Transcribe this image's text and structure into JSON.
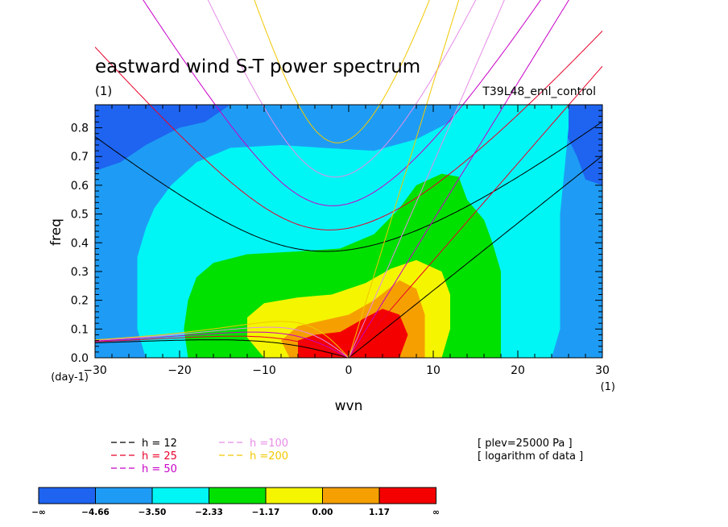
{
  "chart_data": {
    "type": "heatmap",
    "title": "eastward wind S-T power spectrum",
    "subtitle_left": "(1)",
    "subtitle_right": "T39L48_eml_control",
    "xlabel": "wvn",
    "ylabel": "freq",
    "x_unit": "(1)",
    "y_unit": "(day-1)",
    "xlim": [
      -30,
      30
    ],
    "ylim": [
      0,
      0.88
    ],
    "x_ticks": [
      "−30",
      "−20",
      "−10",
      "0",
      "10",
      "20",
      "30"
    ],
    "y_ticks": [
      "0.0",
      "0.1",
      "0.2",
      "0.3",
      "0.4",
      "0.5",
      "0.6",
      "0.7",
      "0.8"
    ],
    "grid": false,
    "levels": [
      -4.66,
      -3.5,
      -2.33,
      -1.17,
      0.0,
      1.17
    ],
    "colorbar_labels": [
      "−∞",
      "−4.66",
      "−3.50",
      "−2.33",
      "−1.17",
      "0.00",
      "1.17",
      "∞"
    ],
    "colorbar_colors": [
      "#1e64f0",
      "#1e9cf5",
      "#00f5f5",
      "#00e100",
      "#f5f500",
      "#f5a000",
      "#f50000"
    ],
    "contours": [
      {
        "level": -4.66,
        "points": [
          [
            -30,
            0.86
          ],
          [
            -30,
            0.65
          ],
          [
            -27,
            0.68
          ],
          [
            -24,
            0.74
          ],
          [
            -20,
            0.8
          ],
          [
            -17,
            0.82
          ],
          [
            -14,
            0.88
          ]
        ]
      },
      {
        "level": -4.66,
        "points": [
          [
            21,
            0.88
          ],
          [
            24,
            0.82
          ],
          [
            26,
            0.76
          ],
          [
            27,
            0.7
          ],
          [
            28,
            0.62
          ],
          [
            30,
            0.6
          ]
        ]
      },
      {
        "level": -3.5,
        "points": [
          [
            -24,
            0.0
          ],
          [
            -25,
            0.1
          ],
          [
            -25,
            0.22
          ],
          [
            -25,
            0.35
          ],
          [
            -24,
            0.45
          ],
          [
            -23,
            0.52
          ],
          [
            -21,
            0.6
          ],
          [
            -18,
            0.68
          ],
          [
            -14,
            0.73
          ],
          [
            -8,
            0.74
          ],
          [
            -3,
            0.73
          ],
          [
            3,
            0.72
          ],
          [
            8,
            0.76
          ],
          [
            12,
            0.82
          ],
          [
            13,
            0.88
          ]
        ]
      },
      {
        "level": -3.5,
        "points": [
          [
            24,
            0.0
          ],
          [
            25,
            0.1
          ],
          [
            25,
            0.22
          ],
          [
            25,
            0.35
          ],
          [
            25,
            0.5
          ],
          [
            25.5,
            0.65
          ],
          [
            26,
            0.8
          ],
          [
            26,
            0.88
          ]
        ]
      },
      {
        "level": -2.33,
        "points": [
          [
            -19,
            0.0
          ],
          [
            -19.5,
            0.1
          ],
          [
            -19,
            0.2
          ],
          [
            -18,
            0.28
          ],
          [
            -16,
            0.33
          ],
          [
            -12,
            0.36
          ],
          [
            -6,
            0.37
          ],
          [
            -1,
            0.38
          ],
          [
            3,
            0.43
          ],
          [
            6,
            0.52
          ],
          [
            8,
            0.6
          ],
          [
            11,
            0.64
          ],
          [
            13,
            0.63
          ],
          [
            14,
            0.55
          ],
          [
            16,
            0.48
          ],
          [
            17,
            0.4
          ],
          [
            18,
            0.3
          ],
          [
            18,
            0.2
          ],
          [
            18,
            0.1
          ],
          [
            18,
            0.0
          ]
        ]
      },
      {
        "level": -1.17,
        "points": [
          [
            -10,
            0.0
          ],
          [
            -12,
            0.07
          ],
          [
            -12,
            0.14
          ],
          [
            -10,
            0.19
          ],
          [
            -6,
            0.21
          ],
          [
            -2,
            0.22
          ],
          [
            2,
            0.26
          ],
          [
            5,
            0.31
          ],
          [
            8,
            0.34
          ],
          [
            11,
            0.3
          ],
          [
            12,
            0.22
          ],
          [
            12,
            0.1
          ],
          [
            11,
            0.0
          ]
        ]
      },
      {
        "level": 0.0,
        "points": [
          [
            -7,
            0.0
          ],
          [
            -8,
            0.06
          ],
          [
            -6,
            0.11
          ],
          [
            -3,
            0.13
          ],
          [
            0,
            0.15
          ],
          [
            3,
            0.2
          ],
          [
            6,
            0.27
          ],
          [
            8,
            0.24
          ],
          [
            9,
            0.15
          ],
          [
            9,
            0.05
          ],
          [
            9,
            0.0
          ]
        ]
      },
      {
        "level": 1.17,
        "points": [
          [
            -6,
            0.0
          ],
          [
            -6,
            0.06
          ],
          [
            -4,
            0.08
          ],
          [
            -1,
            0.09
          ],
          [
            2,
            0.14
          ],
          [
            4,
            0.17
          ],
          [
            6,
            0.15
          ],
          [
            7,
            0.08
          ],
          [
            6,
            0.0
          ]
        ]
      }
    ],
    "dispersion_curves": [
      {
        "label": "h = 12",
        "value": 12,
        "color": "#000000"
      },
      {
        "label": "h = 25",
        "value": 25,
        "color": "#e8002a"
      },
      {
        "label": "h = 50",
        "value": 50,
        "color": "#c800c8"
      },
      {
        "label": "h =100",
        "value": 100,
        "color": "#e68ce6"
      },
      {
        "label": "h =200",
        "value": 200,
        "color": "#f0c800"
      }
    ],
    "annotations": [
      "[ plev=25000 Pa ]",
      "[ logarithm of data ]"
    ]
  }
}
